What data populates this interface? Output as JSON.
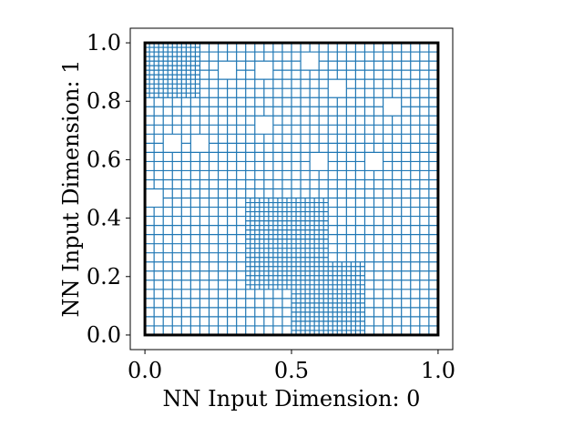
{
  "chart_data": {
    "type": "mesh-partition",
    "xlabel": "NN Input Dimension: 0",
    "ylabel": "NN Input Dimension: 1",
    "xlim": [
      -0.05,
      1.05
    ],
    "ylim": [
      -0.05,
      1.05
    ],
    "xticks": [
      {
        "value": 0.0,
        "label": "0.0"
      },
      {
        "value": 0.5,
        "label": "0.5"
      },
      {
        "value": 1.0,
        "label": "1.0"
      }
    ],
    "yticks": [
      {
        "value": 0.0,
        "label": "0.0"
      },
      {
        "value": 0.2,
        "label": "0.2"
      },
      {
        "value": 0.4,
        "label": "0.4"
      },
      {
        "value": 0.6,
        "label": "0.6"
      },
      {
        "value": 0.8,
        "label": "0.8"
      },
      {
        "value": 1.0,
        "label": "1.0"
      }
    ],
    "domain_box": {
      "x": [
        0,
        1
      ],
      "y": [
        0,
        1
      ],
      "color": "#000000"
    },
    "partition_color": "#1f77b4",
    "base_grid_step": 0.03125,
    "fine_regions": [
      {
        "x": [
          0.0,
          0.1875
        ],
        "y": [
          0.8125,
          1.0
        ],
        "step": 0.015625
      },
      {
        "x": [
          0.34375,
          0.625
        ],
        "y": [
          0.15625,
          0.46875
        ],
        "step": 0.015625
      },
      {
        "x": [
          0.5,
          0.75
        ],
        "y": [
          0.0,
          0.25
        ],
        "step": 0.015625
      }
    ],
    "coarse_regions": [
      {
        "x": [
          0.375,
          0.4375
        ],
        "y": [
          0.875,
          0.9375
        ]
      },
      {
        "x": [
          0.625,
          0.6875
        ],
        "y": [
          0.8125,
          0.875
        ]
      },
      {
        "x": [
          0.25,
          0.3125
        ],
        "y": [
          0.875,
          0.9375
        ]
      },
      {
        "x": [
          0.53125,
          0.59375
        ],
        "y": [
          0.90625,
          0.96875
        ]
      },
      {
        "x": [
          0.15625,
          0.21875
        ],
        "y": [
          0.625,
          0.6875
        ]
      },
      {
        "x": [
          0.0625,
          0.125
        ],
        "y": [
          0.625,
          0.6875
        ]
      },
      {
        "x": [
          0.75,
          0.8125
        ],
        "y": [
          0.5625,
          0.625
        ]
      },
      {
        "x": [
          0.375,
          0.4375
        ],
        "y": [
          0.6875,
          0.75
        ]
      },
      {
        "x": [
          0.5625,
          0.625
        ],
        "y": [
          0.5625,
          0.625
        ]
      },
      {
        "x": [
          0.0,
          0.0625
        ],
        "y": [
          0.4375,
          0.5
        ]
      },
      {
        "x": [
          0.8125,
          0.875
        ],
        "y": [
          0.75,
          0.8125
        ]
      }
    ]
  }
}
